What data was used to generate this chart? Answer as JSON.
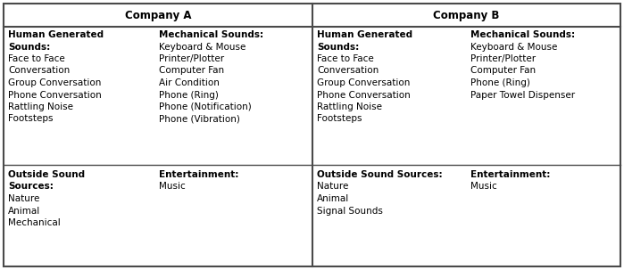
{
  "title_a": "Company A",
  "title_b": "Company B",
  "figsize": [
    6.99,
    3.03
  ],
  "dpi": 100,
  "company_a": {
    "col1_header_line1": "Human Generated",
    "col1_header_line2": "Sounds:",
    "col1_items": [
      "Face to Face",
      "Conversation",
      "Group Conversation",
      "Phone Conversation",
      "Rattling Noise",
      "Footsteps"
    ],
    "col2_header": "Mechanical Sounds:",
    "col2_items": [
      "Keyboard & Mouse",
      "Printer/Plotter",
      "Computer Fan",
      "Air Condition",
      "Phone (Ring)",
      "Phone (Notification)",
      "Phone (Vibration)"
    ],
    "col3_header_line1": "Outside Sound",
    "col3_header_line2": "Sources:",
    "col3_items": [
      "Nature",
      "Animal",
      "Mechanical"
    ],
    "col4_header": "Entertainment:",
    "col4_items": [
      "Music"
    ]
  },
  "company_b": {
    "col1_header_line1": "Human Generated",
    "col1_header_line2": "Sounds:",
    "col1_items": [
      "Face to Face",
      "Conversation",
      "Group Conversation",
      "Phone Conversation",
      "Rattling Noise",
      "Footsteps"
    ],
    "col2_header": "Mechanical Sounds:",
    "col2_items": [
      "Keyboard & Mouse",
      "Printer/Plotter",
      "Computer Fan",
      "Phone (Ring)",
      "Paper Towel Dispenser"
    ],
    "col3_header": "Outside Sound Sources:",
    "col3_items": [
      "Nature",
      "Animal",
      "Signal Sounds"
    ],
    "col4_header": "Entertainment:",
    "col4_items": [
      "Music"
    ]
  },
  "bg_color": "#ffffff",
  "border_color": "#4a4a4a",
  "body_fontsize": 7.5,
  "header_title_fontsize": 8.5
}
